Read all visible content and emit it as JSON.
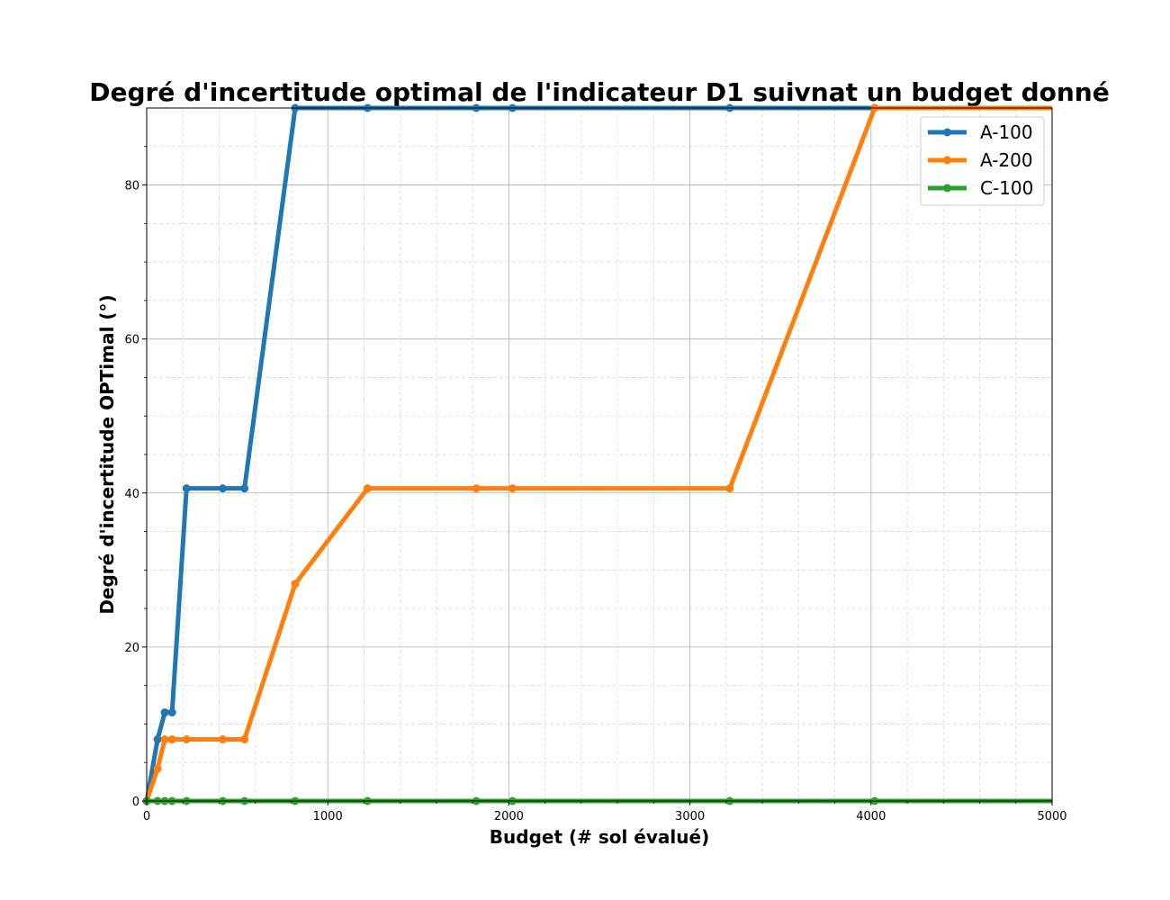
{
  "chart_data": {
    "type": "line",
    "title": "Degré d'incertitude optimal de l'indicateur D1  suivnat un budget donné",
    "xlabel": "Budget (# sol évalué)",
    "ylabel": "Degré d'incertitude OPTimal (°)",
    "xlim": [
      0,
      5000
    ],
    "ylim": [
      0,
      90
    ],
    "xticks": [
      0,
      1000,
      2000,
      3000,
      4000,
      5000
    ],
    "yticks": [
      0,
      20,
      40,
      60,
      80
    ],
    "grid": true,
    "legend_position": "upper right",
    "series": [
      {
        "name": "A-100",
        "color": "#1f77b4",
        "x": [
          0,
          60,
          100,
          140,
          220,
          420,
          540,
          820,
          1220,
          1820,
          2020,
          3220,
          4020,
          5020
        ],
        "y": [
          0,
          8.0,
          11.5,
          11.5,
          40.6,
          40.6,
          40.6,
          90,
          90,
          90,
          90,
          90,
          90,
          90
        ]
      },
      {
        "name": "A-200",
        "color": "#ff7f0e",
        "x": [
          0,
          60,
          100,
          140,
          220,
          420,
          540,
          820,
          1220,
          1820,
          2020,
          3220,
          4020,
          5020
        ],
        "y": [
          0,
          4.2,
          8.0,
          8.0,
          8.0,
          8.0,
          8.0,
          28.2,
          40.6,
          40.6,
          40.6,
          40.6,
          90,
          90
        ]
      },
      {
        "name": "C-100",
        "color": "#2ca02c",
        "x": [
          0,
          60,
          100,
          140,
          220,
          420,
          540,
          820,
          1220,
          1820,
          2020,
          3220,
          4020,
          5020
        ],
        "y": [
          0,
          0,
          0,
          0,
          0,
          0,
          0,
          0,
          0,
          0,
          0,
          0,
          0,
          0
        ]
      }
    ]
  }
}
